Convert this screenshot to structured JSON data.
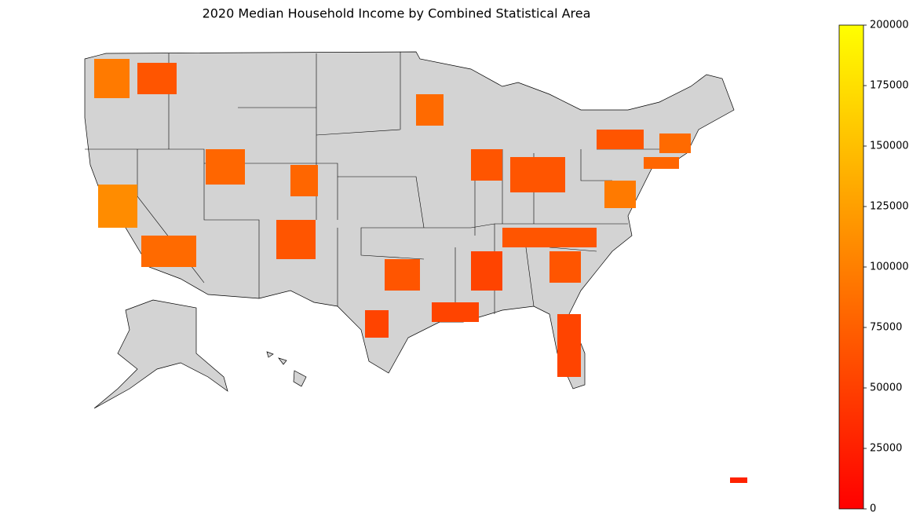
{
  "chart_data": {
    "type": "choropleth",
    "title": "2020 Median Household Income by Combined Statistical Area",
    "colorbar": {
      "lim": [
        0,
        200000
      ],
      "ticks": [
        0,
        25000,
        50000,
        75000,
        100000,
        125000,
        150000,
        175000,
        200000
      ],
      "colors": [
        "#ff0000",
        "#ffff00"
      ]
    }
  }
}
